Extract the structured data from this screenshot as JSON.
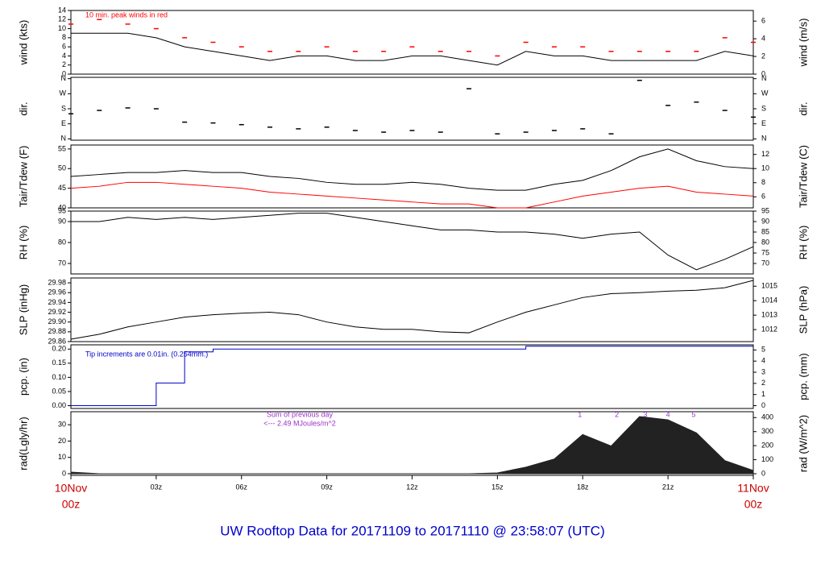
{
  "page_title": "UW Rooftop Data for 20171109  to  20171110 @ 23:58:07  (UTC)",
  "chart_data": [
    {
      "type": "line",
      "ylabel": "wind (kts)",
      "y2label": "wind (m/s)",
      "annotations": [
        "10 min. peak winds in red"
      ],
      "x": [
        0,
        1,
        2,
        3,
        4,
        5,
        6,
        7,
        8,
        9,
        10,
        11,
        12,
        13,
        14,
        15,
        16,
        17,
        18,
        19,
        20,
        21,
        22,
        23,
        24
      ],
      "xlim": [
        0,
        24
      ],
      "ylim": [
        0,
        14
      ],
      "yticks": [
        0,
        2,
        4,
        6,
        8,
        10,
        12,
        14
      ],
      "y2lim": [
        0,
        7.2
      ],
      "y2ticks": [
        0,
        2,
        4,
        6
      ],
      "series": [
        {
          "color": "#000000",
          "mark": "line",
          "values": [
            9,
            9,
            9,
            8,
            6,
            5,
            4,
            3,
            4,
            4,
            3,
            3,
            4,
            4,
            3,
            2,
            5,
            4,
            4,
            3,
            3,
            3,
            3,
            5,
            4
          ]
        },
        {
          "color": "#ff0000",
          "mark": "dash",
          "values": [
            11,
            12,
            11,
            10,
            8,
            7,
            6,
            5,
            5,
            6,
            5,
            5,
            6,
            5,
            5,
            4,
            7,
            6,
            6,
            5,
            5,
            5,
            5,
            8,
            7
          ]
        }
      ]
    },
    {
      "type": "scatter",
      "ylabel": "dir.",
      "y2label": "dir.",
      "x": [
        0,
        1,
        2,
        3,
        4,
        5,
        6,
        7,
        8,
        9,
        10,
        11,
        12,
        13,
        14,
        15,
        16,
        17,
        18,
        19,
        20,
        21,
        22,
        23,
        24
      ],
      "xlim": [
        0,
        24
      ],
      "ylim": [
        -8,
        368
      ],
      "yticks": [
        {
          "value": 0,
          "label": "N"
        },
        {
          "value": 90,
          "label": "E"
        },
        {
          "value": 180,
          "label": "S"
        },
        {
          "value": 270,
          "label": "W"
        },
        {
          "value": 360,
          "label": "N"
        }
      ],
      "series": [
        {
          "color": "#000000",
          "mark": "dash",
          "values": [
            150,
            170,
            185,
            180,
            100,
            95,
            85,
            70,
            60,
            70,
            50,
            40,
            50,
            40,
            300,
            30,
            40,
            50,
            60,
            30,
            350,
            200,
            220,
            170,
            130
          ]
        }
      ]
    },
    {
      "type": "line",
      "ylabel": "Tair/Tdew (F)",
      "y2label": "Tair/Tdew (C)",
      "x": [
        0,
        1,
        2,
        3,
        4,
        5,
        6,
        7,
        8,
        9,
        10,
        11,
        12,
        13,
        14,
        15,
        16,
        17,
        18,
        19,
        20,
        21,
        22,
        23,
        24
      ],
      "xlim": [
        0,
        24
      ],
      "ylim": [
        40,
        56
      ],
      "yticks": [
        40,
        45,
        50,
        55
      ],
      "y2lim": [
        4.44,
        13.33
      ],
      "y2ticks": [
        6,
        8,
        10,
        12
      ],
      "series": [
        {
          "color": "#000000",
          "mark": "line",
          "values": [
            48,
            48.5,
            49,
            49,
            49.5,
            49,
            49,
            48,
            47.5,
            46.5,
            46,
            46,
            46.5,
            46,
            45,
            44.5,
            44.5,
            46,
            47,
            49.5,
            53,
            55,
            52,
            50.5,
            50
          ]
        },
        {
          "color": "#ff0000",
          "mark": "line",
          "values": [
            45,
            45.5,
            46.5,
            46.5,
            46,
            45.5,
            45,
            44,
            43.5,
            43,
            42.5,
            42,
            41.5,
            41,
            41,
            40,
            40,
            41.5,
            43,
            44,
            45,
            45.5,
            44,
            43.5,
            43
          ]
        }
      ]
    },
    {
      "type": "line",
      "ylabel": "RH (%)",
      "y2label": "RH (%)",
      "x": [
        0,
        1,
        2,
        3,
        4,
        5,
        6,
        7,
        8,
        9,
        10,
        11,
        12,
        13,
        14,
        15,
        16,
        17,
        18,
        19,
        20,
        21,
        22,
        23,
        24
      ],
      "xlim": [
        0,
        24
      ],
      "ylim": [
        65,
        95
      ],
      "yticks": [
        70,
        80,
        90,
        95
      ],
      "y2lim": [
        65,
        95
      ],
      "y2ticks": [
        70,
        75,
        80,
        85,
        90,
        95
      ],
      "series": [
        {
          "color": "#000000",
          "mark": "line",
          "values": [
            90,
            90,
            92,
            91,
            92,
            91,
            92,
            93,
            94,
            94,
            92,
            90,
            88,
            86,
            86,
            85,
            85,
            84,
            82,
            84,
            85,
            74,
            67,
            72,
            78
          ]
        }
      ]
    },
    {
      "type": "line",
      "ylabel": "SLP (inHg)",
      "y2label": "SLP (hPa)",
      "x": [
        0,
        1,
        2,
        3,
        4,
        5,
        6,
        7,
        8,
        9,
        10,
        11,
        12,
        13,
        14,
        15,
        16,
        17,
        18,
        19,
        20,
        21,
        22,
        23,
        24
      ],
      "xlim": [
        0,
        24
      ],
      "ylim": [
        29.86,
        29.99
      ],
      "yticks": [
        {
          "value": 29.86,
          "label": "29.86"
        },
        {
          "value": 29.88,
          "label": "29.88"
        },
        {
          "value": 29.9,
          "label": "29.90"
        },
        {
          "value": 29.92,
          "label": "29.92"
        },
        {
          "value": 29.94,
          "label": "29.94"
        },
        {
          "value": 29.96,
          "label": "29.96"
        },
        {
          "value": 29.98,
          "label": "29.98"
        }
      ],
      "y2lim": [
        1011.17,
        1015.57
      ],
      "y2ticks": [
        1012,
        1013,
        1014,
        1015
      ],
      "series": [
        {
          "color": "#000000",
          "mark": "line",
          "values": [
            29.865,
            29.875,
            29.89,
            29.9,
            29.91,
            29.915,
            29.918,
            29.92,
            29.915,
            29.9,
            29.89,
            29.885,
            29.885,
            29.88,
            29.878,
            29.9,
            29.92,
            29.935,
            29.95,
            29.958,
            29.96,
            29.963,
            29.965,
            29.97,
            29.985
          ]
        }
      ]
    },
    {
      "type": "step",
      "ylabel": "pcp. (in)",
      "y2label": "pcp. (mm)",
      "annotations": [
        "Tip increments are 0.01in. (0.254mm.)"
      ],
      "x": [
        0,
        1,
        2,
        3,
        4,
        5,
        6,
        7,
        8,
        9,
        10,
        11,
        12,
        13,
        14,
        15,
        16,
        17,
        18,
        19,
        20,
        21,
        22,
        23,
        24
      ],
      "xlim": [
        0,
        24
      ],
      "ylim": [
        -0.01,
        0.215
      ],
      "yticks": [
        {
          "value": 0,
          "label": "0.00"
        },
        {
          "value": 0.05,
          "label": "0.05"
        },
        {
          "value": 0.1,
          "label": "0.10"
        },
        {
          "value": 0.15,
          "label": "0.15"
        },
        {
          "value": 0.2,
          "label": "0.20"
        }
      ],
      "y2lim": [
        -0.254,
        5.461
      ],
      "y2ticks": [
        0,
        1,
        2,
        3,
        4,
        5
      ],
      "series": [
        {
          "color": "#0000cc",
          "mark": "line",
          "values": [
            0,
            0,
            0,
            0.08,
            0.19,
            0.2,
            0.2,
            0.2,
            0.2,
            0.2,
            0.2,
            0.2,
            0.2,
            0.2,
            0.2,
            0.2,
            0.21,
            0.21,
            0.21,
            0.21,
            0.21,
            0.21,
            0.21,
            0.21,
            0.21
          ]
        }
      ]
    },
    {
      "type": "area",
      "ylabel": "rad(Lgly/hr)",
      "y2label": "rad (W/m^2)",
      "annotations": [
        "Sum of previous day",
        "<--- 2.49 MJoules/m^2"
      ],
      "markers": {
        "x": [
          17.9,
          19.2,
          20.2,
          21.0,
          21.9
        ],
        "labels": [
          "1",
          "2",
          "3",
          "4",
          "5"
        ]
      },
      "x": [
        0,
        1,
        2,
        3,
        4,
        5,
        6,
        7,
        8,
        9,
        10,
        11,
        12,
        13,
        14,
        15,
        16,
        17,
        18,
        19,
        20,
        21,
        22,
        23,
        24
      ],
      "xlim": [
        0,
        24
      ],
      "ylim": [
        -1,
        38
      ],
      "yticks": [
        0,
        10,
        20,
        30
      ],
      "y2lim": [
        -11.63,
        441.9
      ],
      "y2ticks": [
        0,
        100,
        200,
        300,
        400
      ],
      "xticks": [
        {
          "value": 0,
          "label": "00z"
        },
        {
          "value": 3,
          "label": "03z"
        },
        {
          "value": 6,
          "label": "06z"
        },
        {
          "value": 9,
          "label": "09z"
        },
        {
          "value": 12,
          "label": "12z"
        },
        {
          "value": 15,
          "label": "15z"
        },
        {
          "value": 18,
          "label": "18z"
        },
        {
          "value": 21,
          "label": "21z"
        },
        {
          "value": 24,
          "label": "00z"
        }
      ],
      "xdates": [
        {
          "value": 0,
          "label": "10Nov"
        },
        {
          "value": 24,
          "label": "11Nov"
        }
      ],
      "series": [
        {
          "color": "#222222",
          "mark": "area",
          "values": [
            1,
            0,
            0,
            0,
            0,
            0,
            0,
            0,
            0,
            0,
            0,
            0,
            0,
            0,
            0,
            0.5,
            4,
            9,
            24,
            17,
            35,
            33,
            25,
            8,
            2
          ]
        }
      ]
    }
  ]
}
